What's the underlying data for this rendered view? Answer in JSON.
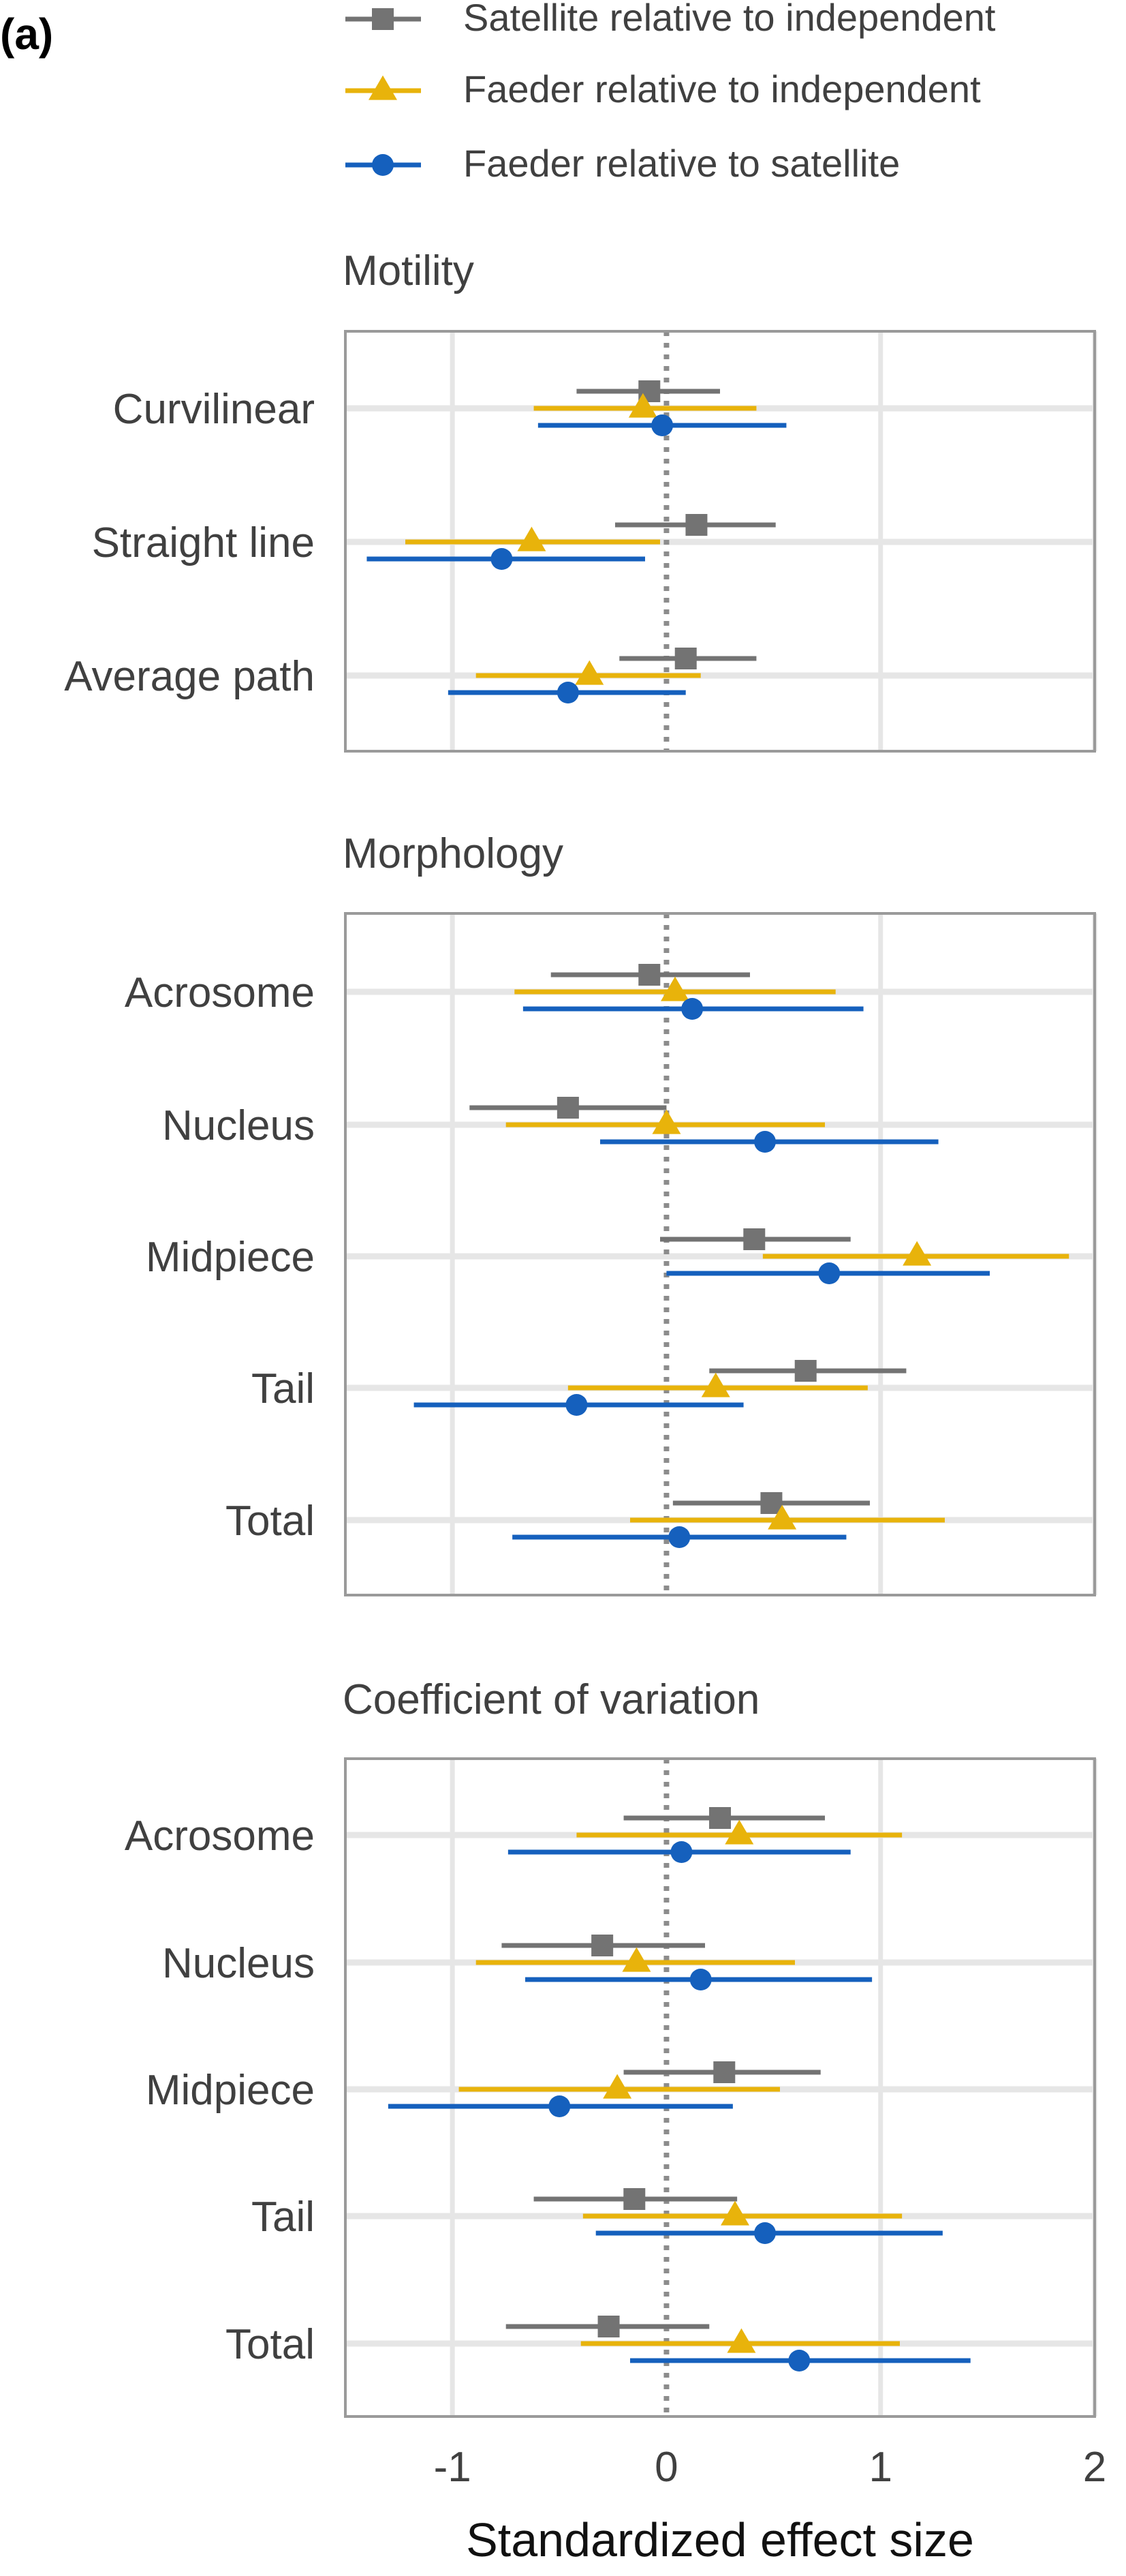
{
  "panel_label": "(a)",
  "xlabel": "Standardized effect size",
  "xlim": [
    -1.5,
    2
  ],
  "xticks": [
    -1,
    0,
    1,
    2
  ],
  "xtick_labels": [
    "-1",
    "0",
    "1",
    "2"
  ],
  "reference_line": 0,
  "grid": true,
  "legend_position": "top",
  "colors": {
    "satellite_independent": "#737373",
    "faeder_independent": "#E8B30B",
    "faeder_satellite": "#1560BD",
    "axis_text": "#404040",
    "panel_border": "#9a9a9a",
    "grid": "#e6e6e6",
    "zero_line": "#8c8c8c"
  },
  "chart_data": {
    "type": "forest",
    "series": [
      {
        "key": "satellite_independent",
        "name": "Satellite relative to independent",
        "marker": "square"
      },
      {
        "key": "faeder_independent",
        "name": "Faeder relative to independent",
        "marker": "triangle"
      },
      {
        "key": "faeder_satellite",
        "name": "Faeder relative to satellite",
        "marker": "circle"
      }
    ],
    "panels": [
      {
        "title": "Motility",
        "rows": [
          {
            "label": "Curvilinear",
            "satellite_independent": {
              "est": -0.08,
              "lo": -0.42,
              "hi": 0.25
            },
            "faeder_independent": {
              "est": -0.11,
              "lo": -0.62,
              "hi": 0.42
            },
            "faeder_satellite": {
              "est": -0.02,
              "lo": -0.6,
              "hi": 0.56
            }
          },
          {
            "label": "Straight line",
            "satellite_independent": {
              "est": 0.14,
              "lo": -0.24,
              "hi": 0.51
            },
            "faeder_independent": {
              "est": -0.63,
              "lo": -1.22,
              "hi": -0.03
            },
            "faeder_satellite": {
              "est": -0.77,
              "lo": -1.4,
              "hi": -0.1
            }
          },
          {
            "label": "Average path",
            "satellite_independent": {
              "est": 0.09,
              "lo": -0.22,
              "hi": 0.42
            },
            "faeder_independent": {
              "est": -0.36,
              "lo": -0.89,
              "hi": 0.16
            },
            "faeder_satellite": {
              "est": -0.46,
              "lo": -1.02,
              "hi": 0.09
            }
          }
        ]
      },
      {
        "title": "Morphology",
        "rows": [
          {
            "label": "Acrosome",
            "satellite_independent": {
              "est": -0.08,
              "lo": -0.54,
              "hi": 0.39
            },
            "faeder_independent": {
              "est": 0.04,
              "lo": -0.71,
              "hi": 0.79
            },
            "faeder_satellite": {
              "est": 0.12,
              "lo": -0.67,
              "hi": 0.92
            }
          },
          {
            "label": "Nucleus",
            "satellite_independent": {
              "est": -0.46,
              "lo": -0.92,
              "hi": 0.0
            },
            "faeder_independent": {
              "est": 0.0,
              "lo": -0.75,
              "hi": 0.74
            },
            "faeder_satellite": {
              "est": 0.46,
              "lo": -0.31,
              "hi": 1.27
            }
          },
          {
            "label": "Midpiece",
            "satellite_independent": {
              "est": 0.41,
              "lo": -0.03,
              "hi": 0.86
            },
            "faeder_independent": {
              "est": 1.17,
              "lo": 0.45,
              "hi": 1.88
            },
            "faeder_satellite": {
              "est": 0.76,
              "lo": 0.0,
              "hi": 1.51
            }
          },
          {
            "label": "Tail",
            "satellite_independent": {
              "est": 0.65,
              "lo": 0.2,
              "hi": 1.12
            },
            "faeder_independent": {
              "est": 0.23,
              "lo": -0.46,
              "hi": 0.94
            },
            "faeder_satellite": {
              "est": -0.42,
              "lo": -1.18,
              "hi": 0.36
            }
          },
          {
            "label": "Total",
            "satellite_independent": {
              "est": 0.49,
              "lo": 0.03,
              "hi": 0.95
            },
            "faeder_independent": {
              "est": 0.54,
              "lo": -0.17,
              "hi": 1.3
            },
            "faeder_satellite": {
              "est": 0.06,
              "lo": -0.72,
              "hi": 0.84
            }
          }
        ]
      },
      {
        "title": "Coefficient of variation",
        "rows": [
          {
            "label": "Acrosome",
            "satellite_independent": {
              "est": 0.25,
              "lo": -0.2,
              "hi": 0.74
            },
            "faeder_independent": {
              "est": 0.34,
              "lo": -0.42,
              "hi": 1.1
            },
            "faeder_satellite": {
              "est": 0.07,
              "lo": -0.74,
              "hi": 0.86
            }
          },
          {
            "label": "Nucleus",
            "satellite_independent": {
              "est": -0.3,
              "lo": -0.77,
              "hi": 0.18
            },
            "faeder_independent": {
              "est": -0.14,
              "lo": -0.89,
              "hi": 0.6
            },
            "faeder_satellite": {
              "est": 0.16,
              "lo": -0.66,
              "hi": 0.96
            }
          },
          {
            "label": "Midpiece",
            "satellite_independent": {
              "est": 0.27,
              "lo": -0.2,
              "hi": 0.72
            },
            "faeder_independent": {
              "est": -0.23,
              "lo": -0.97,
              "hi": 0.53
            },
            "faeder_satellite": {
              "est": -0.5,
              "lo": -1.3,
              "hi": 0.31
            }
          },
          {
            "label": "Tail",
            "satellite_independent": {
              "est": -0.15,
              "lo": -0.62,
              "hi": 0.33
            },
            "faeder_independent": {
              "est": 0.32,
              "lo": -0.39,
              "hi": 1.1
            },
            "faeder_satellite": {
              "est": 0.46,
              "lo": -0.33,
              "hi": 1.29
            }
          },
          {
            "label": "Total",
            "satellite_independent": {
              "est": -0.27,
              "lo": -0.75,
              "hi": 0.2
            },
            "faeder_independent": {
              "est": 0.35,
              "lo": -0.4,
              "hi": 1.09
            },
            "faeder_satellite": {
              "est": 0.62,
              "lo": -0.17,
              "hi": 1.42
            }
          }
        ]
      }
    ]
  }
}
